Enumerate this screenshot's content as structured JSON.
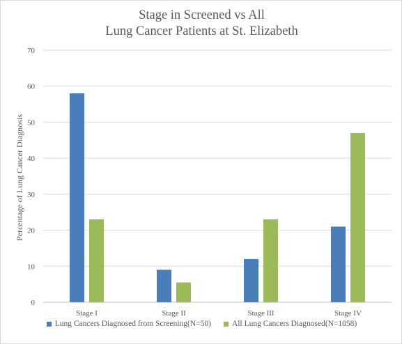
{
  "chart_data": {
    "type": "bar",
    "title_lines": [
      "Stage in Screened vs All",
      "Lung Cancer Patients at St. Elizabeth"
    ],
    "xlabel": "",
    "ylabel": "Percentage of Lung Cancer Diagnosis",
    "ylim": [
      0,
      70
    ],
    "yticks": [
      "0",
      "10",
      "20",
      "30",
      "40",
      "50",
      "60",
      "70"
    ],
    "grid": true,
    "legend_position": "bottom",
    "categories": [
      "Stage I",
      "Stage II",
      "Stage III",
      "Stage IV"
    ],
    "series": [
      {
        "name": "Lung Cancers Diagnosed from Screening(N=50)",
        "color": "#4a7ebb",
        "values": [
          58,
          9,
          12,
          21
        ]
      },
      {
        "name": "All Lung Cancers Diagnosed(N=1058)",
        "color": "#9bbb59",
        "values": [
          23,
          5.5,
          23,
          47
        ]
      }
    ]
  }
}
